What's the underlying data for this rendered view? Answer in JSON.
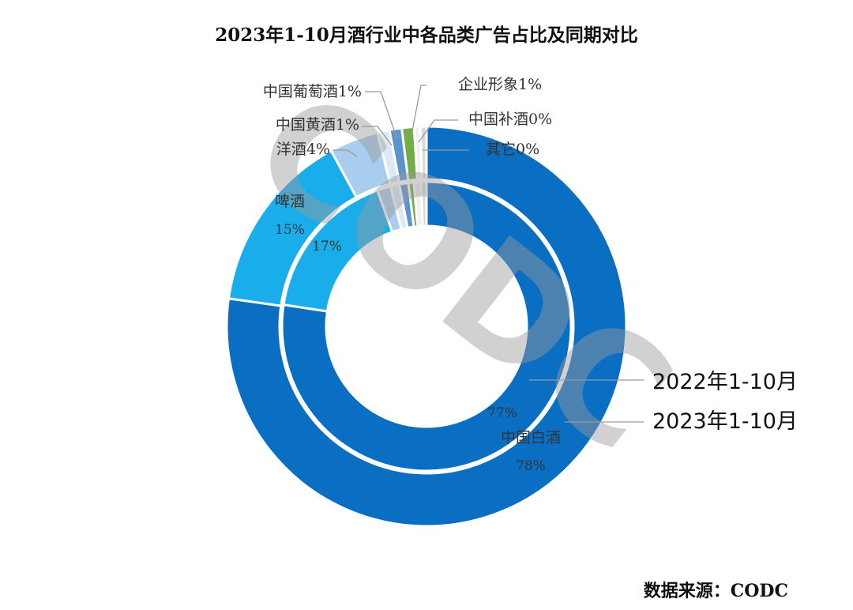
{
  "chart_data": {
    "type": "donut",
    "title": "2023年1-10月酒行业中各品类广告占比及同期对比",
    "series": [
      {
        "name": "2022年1-10月",
        "ring": "inner",
        "values": [
          77,
          17,
          1.5,
          1,
          1,
          0.6,
          0.8,
          0.6
        ]
      },
      {
        "name": "2023年1-10月",
        "ring": "outer",
        "values": [
          78,
          15,
          4,
          1,
          1,
          1,
          0.5,
          0.5
        ]
      }
    ],
    "categories": [
      "中国白酒",
      "啤酒",
      "洋酒",
      "中国黄酒",
      "中国葡萄酒",
      "企业形象",
      "中国补酒",
      "其它"
    ],
    "colors": [
      "#0a6fc3",
      "#19adec",
      "#a9cdee",
      "#dce9f6",
      "#5b93cc",
      "#72ad47",
      "#f0f0f0",
      "#d9d9d9"
    ],
    "outer_value_labels": [
      "78%",
      "15%",
      "4%",
      "1%",
      "1%",
      "1%",
      "0%",
      "0%"
    ],
    "inner_value_labels": [
      "77%",
      "17%"
    ],
    "category_labels": {
      "baijiu": "中国白酒",
      "pijiu": "啤酒",
      "yangjiu": "洋酒4%",
      "huangjiu": "中国黄酒1%",
      "putaojiu": "中国葡萄酒1%",
      "qiye": "企业形象1%",
      "bujiu": "中国补酒0%",
      "qita": "其它0%"
    },
    "ring_labels": {
      "inner": "2022年1-10月",
      "outer": "2023年1-10月"
    },
    "legend": "none",
    "grid": false
  },
  "watermark": "CODC",
  "source": "数据来源：CODC"
}
